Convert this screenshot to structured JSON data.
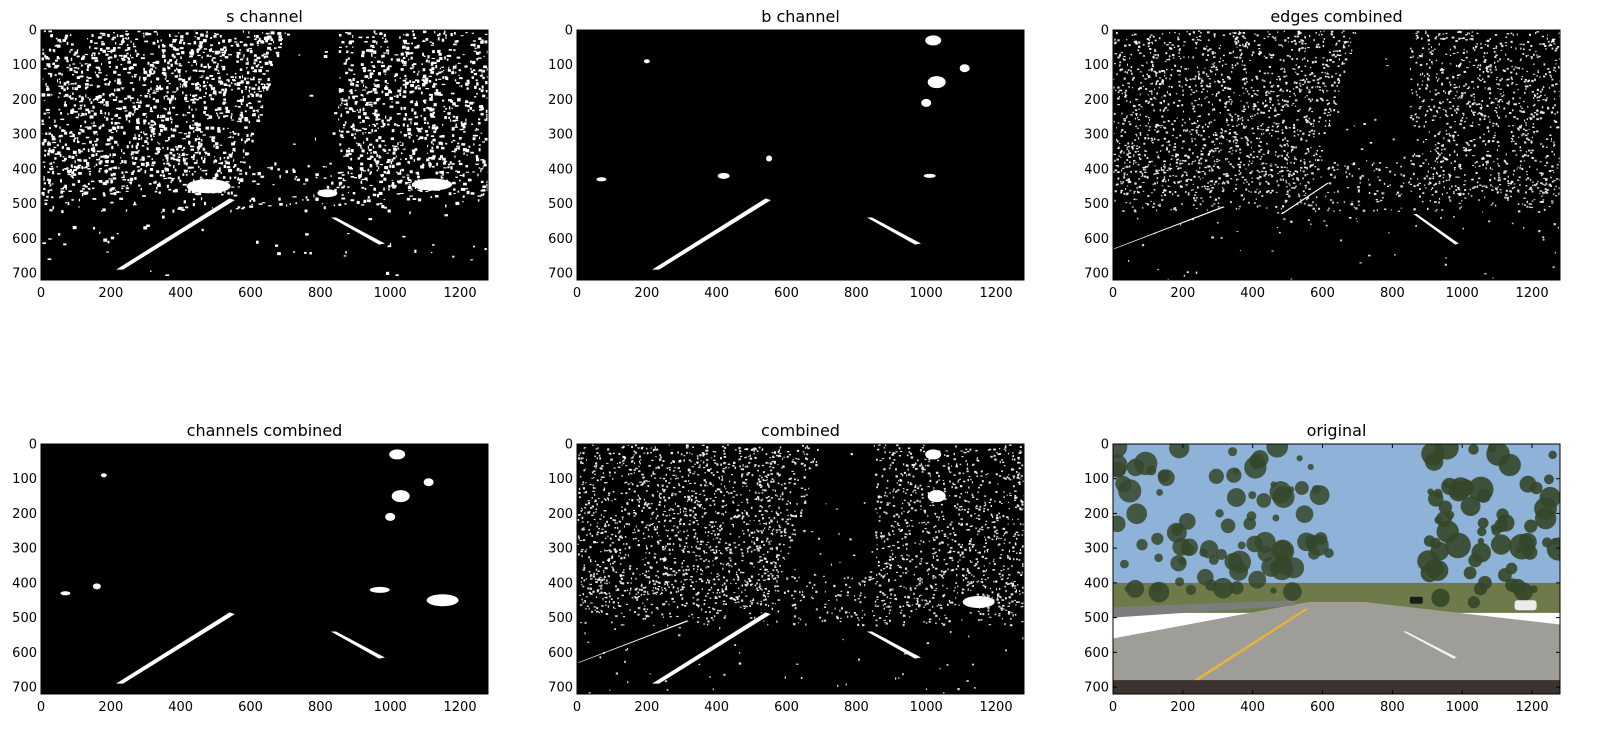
{
  "figure": {
    "background": "#ffffff",
    "panels": [
      {
        "title": "s channel",
        "kind": "binary-mask",
        "x_ticks": [
          "0",
          "200",
          "400",
          "600",
          "800",
          "1000",
          "1200"
        ],
        "y_ticks": [
          "0",
          "100",
          "200",
          "300",
          "400",
          "500",
          "600",
          "700"
        ]
      },
      {
        "title": "b channel",
        "kind": "binary-mask",
        "x_ticks": [
          "0",
          "200",
          "400",
          "600",
          "800",
          "1000",
          "1200"
        ],
        "y_ticks": [
          "0",
          "100",
          "200",
          "300",
          "400",
          "500",
          "600",
          "700"
        ]
      },
      {
        "title": "edges combined",
        "kind": "binary-mask",
        "x_ticks": [
          "0",
          "200",
          "400",
          "600",
          "800",
          "1000",
          "1200"
        ],
        "y_ticks": [
          "0",
          "100",
          "200",
          "300",
          "400",
          "500",
          "600",
          "700"
        ]
      },
      {
        "title": "channels combined",
        "kind": "binary-mask",
        "x_ticks": [
          "0",
          "200",
          "400",
          "600",
          "800",
          "1000",
          "1200"
        ],
        "y_ticks": [
          "0",
          "100",
          "200",
          "300",
          "400",
          "500",
          "600",
          "700"
        ]
      },
      {
        "title": "combined",
        "kind": "binary-mask",
        "x_ticks": [
          "0",
          "200",
          "400",
          "600",
          "800",
          "1000",
          "1200"
        ],
        "y_ticks": [
          "0",
          "100",
          "200",
          "300",
          "400",
          "500",
          "600",
          "700"
        ]
      },
      {
        "title": "original",
        "kind": "road-photo",
        "x_ticks": [
          "0",
          "200",
          "400",
          "600",
          "800",
          "1000",
          "1200"
        ],
        "y_ticks": [
          "0",
          "100",
          "200",
          "300",
          "400",
          "500",
          "600",
          "700"
        ]
      }
    ],
    "colors": {
      "mask_background": "#000000",
      "mask_foreground": "#ffffff",
      "lane_yellow": "#e7b43a",
      "sky": "#8fb3d8",
      "tree": "#35472a",
      "road": "#9e9d98"
    }
  }
}
